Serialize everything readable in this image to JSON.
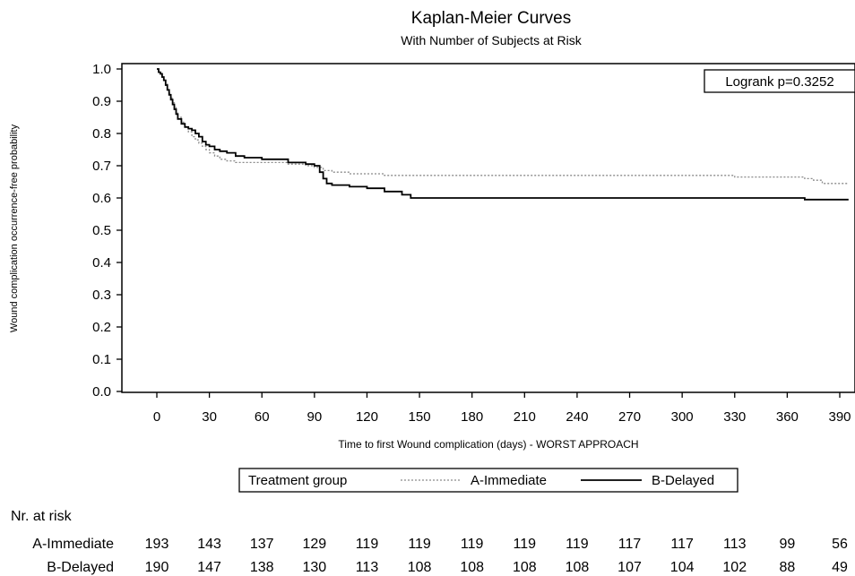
{
  "chart_data": {
    "type": "line",
    "title": "Kaplan-Meier Curves",
    "subtitle": "With Number of Subjects at Risk",
    "xlabel": "Time to first Wound complication (days) - WORST APPROACH",
    "ylabel": "Wound complication occurrence-free probability",
    "xlim": [
      0,
      395
    ],
    "ylim": [
      0.0,
      1.0
    ],
    "xticks": [
      "0",
      "30",
      "60",
      "90",
      "120",
      "150",
      "180",
      "210",
      "240",
      "270",
      "300",
      "330",
      "360",
      "390"
    ],
    "yticks": [
      "0.0",
      "0.1",
      "0.2",
      "0.3",
      "0.4",
      "0.5",
      "0.6",
      "0.7",
      "0.8",
      "0.9",
      "1.0"
    ],
    "grid": false,
    "annotation": "Logrank p=0.3252",
    "legend": {
      "title": "Treatment group",
      "position": "bottom",
      "entries": [
        "A-Immediate",
        "B-Delayed"
      ]
    },
    "series": [
      {
        "name": "A-Immediate",
        "style": "dotted-gray",
        "x": [
          0,
          1,
          2,
          3,
          4,
          5,
          6,
          7,
          8,
          9,
          10,
          11,
          12,
          14,
          16,
          18,
          20,
          22,
          24,
          26,
          28,
          30,
          33,
          36,
          40,
          45,
          50,
          60,
          75,
          85,
          90,
          95,
          100,
          110,
          130,
          150,
          200,
          250,
          300,
          330,
          345,
          365,
          370,
          375,
          380,
          395
        ],
        "y": [
          1.0,
          0.99,
          0.98,
          0.975,
          0.965,
          0.955,
          0.94,
          0.925,
          0.91,
          0.895,
          0.88,
          0.865,
          0.85,
          0.835,
          0.82,
          0.805,
          0.79,
          0.78,
          0.77,
          0.76,
          0.75,
          0.74,
          0.73,
          0.72,
          0.715,
          0.71,
          0.71,
          0.71,
          0.705,
          0.7,
          0.695,
          0.685,
          0.68,
          0.675,
          0.67,
          0.67,
          0.67,
          0.67,
          0.67,
          0.665,
          0.665,
          0.665,
          0.66,
          0.655,
          0.645,
          0.645
        ]
      },
      {
        "name": "B-Delayed",
        "style": "solid-black",
        "x": [
          0,
          1,
          2,
          3,
          4,
          5,
          6,
          7,
          8,
          9,
          10,
          11,
          12,
          14,
          16,
          18,
          20,
          22,
          24,
          26,
          28,
          30,
          33,
          36,
          40,
          45,
          50,
          60,
          75,
          85,
          90,
          93,
          95,
          97,
          100,
          110,
          120,
          130,
          140,
          145,
          200,
          250,
          300,
          350,
          370,
          395
        ],
        "y": [
          1.0,
          0.99,
          0.985,
          0.975,
          0.965,
          0.95,
          0.935,
          0.92,
          0.905,
          0.89,
          0.875,
          0.86,
          0.845,
          0.83,
          0.82,
          0.815,
          0.81,
          0.8,
          0.79,
          0.775,
          0.765,
          0.76,
          0.75,
          0.745,
          0.74,
          0.73,
          0.725,
          0.72,
          0.71,
          0.705,
          0.7,
          0.68,
          0.66,
          0.645,
          0.64,
          0.635,
          0.63,
          0.62,
          0.61,
          0.6,
          0.6,
          0.6,
          0.6,
          0.6,
          0.595,
          0.595
        ]
      }
    ],
    "risk_table": {
      "title": "Nr. at risk",
      "rows": [
        {
          "label": "A-Immediate",
          "values": [
            "193",
            "143",
            "137",
            "129",
            "119",
            "119",
            "119",
            "119",
            "119",
            "117",
            "117",
            "113",
            "99",
            "56"
          ]
        },
        {
          "label": "B-Delayed",
          "values": [
            "190",
            "147",
            "138",
            "130",
            "113",
            "108",
            "108",
            "108",
            "108",
            "107",
            "104",
            "102",
            "88",
            "49"
          ]
        }
      ]
    }
  }
}
